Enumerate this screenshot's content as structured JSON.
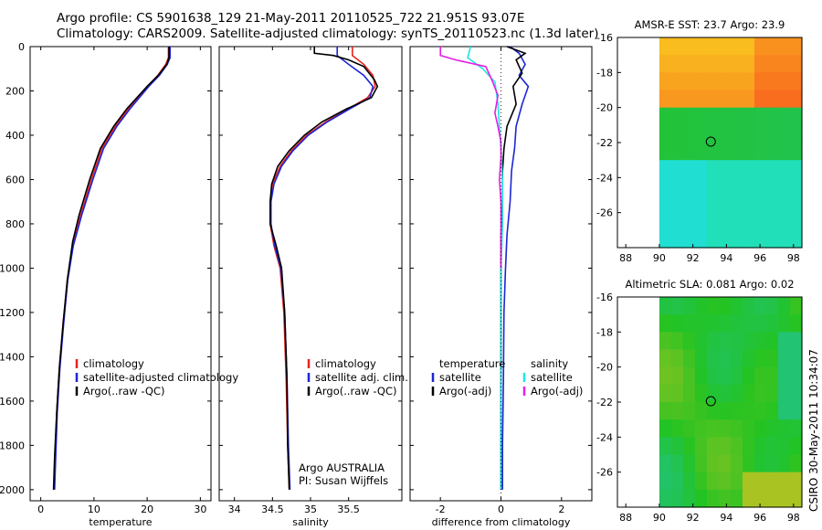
{
  "header": {
    "line1": "Argo profile: CS 5901638_129 21-May-2011 20110525_722 21.951S 93.07E",
    "line2": "Climatology: CARS2009. Satellite-adjusted climatology: synTS_20110523.nc (1.3d later)"
  },
  "footer_stamp": "CSIRO 30-May-2011 10:34:07",
  "colors": {
    "climatology": "#e8231c",
    "satellite": "#1c25d6",
    "argo": "#000000",
    "sat_salinity": "#1ee6e6",
    "argo_salinity": "#e61ee6"
  },
  "chart_data": [
    {
      "type": "line",
      "xlabel": "temperature",
      "xticks": [
        "0",
        "10",
        "20",
        "30"
      ],
      "xlim": [
        -2,
        32
      ],
      "ylim": [
        2050,
        0
      ],
      "yticks": [
        "0",
        "200",
        "400",
        "600",
        "800",
        "1000",
        "1200",
        "1400",
        "1600",
        "1800",
        "2000"
      ],
      "legend": [
        "climatology",
        "satellite-adjusted climatology",
        "Argo(..raw -QC)"
      ],
      "series": [
        {
          "name": "climatology",
          "color": "#e8231c",
          "points": [
            [
              24,
              0
            ],
            [
              24,
              50
            ],
            [
              23.5,
              80
            ],
            [
              22,
              130
            ],
            [
              20,
              180
            ],
            [
              16.5,
              280
            ],
            [
              14,
              360
            ],
            [
              11.5,
              460
            ],
            [
              9.5,
              600
            ],
            [
              7.5,
              760
            ],
            [
              6,
              900
            ],
            [
              5,
              1050
            ],
            [
              4.2,
              1250
            ],
            [
              3.5,
              1450
            ],
            [
              3,
              1650
            ],
            [
              2.7,
              1850
            ],
            [
              2.5,
              2000
            ]
          ]
        },
        {
          "name": "satellite-adjusted climatology",
          "color": "#1c25d6",
          "points": [
            [
              24.3,
              0
            ],
            [
              24.3,
              50
            ],
            [
              23.8,
              80
            ],
            [
              22.3,
              130
            ],
            [
              20.3,
              180
            ],
            [
              16.8,
              280
            ],
            [
              14.3,
              360
            ],
            [
              11.8,
              460
            ],
            [
              9.8,
              600
            ],
            [
              7.7,
              760
            ],
            [
              6.1,
              900
            ],
            [
              5.1,
              1050
            ],
            [
              4.3,
              1250
            ],
            [
              3.6,
              1450
            ],
            [
              3.1,
              1650
            ],
            [
              2.8,
              1850
            ],
            [
              2.6,
              2000
            ]
          ]
        },
        {
          "name": "Argo(..raw -QC)",
          "color": "#000000",
          "points": [
            [
              24.1,
              0
            ],
            [
              24.1,
              50
            ],
            [
              23.7,
              80
            ],
            [
              22.1,
              130
            ],
            [
              20,
              180
            ],
            [
              16.2,
              280
            ],
            [
              13.7,
              360
            ],
            [
              11.2,
              460
            ],
            [
              9.2,
              600
            ],
            [
              7.2,
              760
            ],
            [
              6,
              880
            ],
            [
              5,
              1050
            ],
            [
              4.2,
              1250
            ],
            [
              3.5,
              1450
            ],
            [
              3,
              1650
            ],
            [
              2.6,
              1850
            ],
            [
              2.4,
              2000
            ]
          ]
        }
      ]
    },
    {
      "type": "line",
      "xlabel": "salinity",
      "xticks": [
        "34",
        "34.5",
        "35",
        "35.5"
      ],
      "xlim": [
        33.8,
        36.2
      ],
      "ylim": [
        2050,
        0
      ],
      "legend": [
        "climatology",
        "satellite adj. clim.",
        "Argo(..raw -QC)"
      ],
      "annotation": [
        "Argo AUSTRALIA",
        "PI: Susan Wijffels"
      ],
      "series": [
        {
          "name": "climatology",
          "color": "#e8231c",
          "points": [
            [
              35.55,
              0
            ],
            [
              35.55,
              40
            ],
            [
              35.7,
              80
            ],
            [
              35.82,
              130
            ],
            [
              35.85,
              180
            ],
            [
              35.75,
              230
            ],
            [
              35.5,
              280
            ],
            [
              35.2,
              340
            ],
            [
              34.95,
              400
            ],
            [
              34.75,
              470
            ],
            [
              34.6,
              540
            ],
            [
              34.5,
              620
            ],
            [
              34.47,
              700
            ],
            [
              34.47,
              800
            ],
            [
              34.52,
              900
            ],
            [
              34.6,
              1000
            ],
            [
              34.65,
              1200
            ],
            [
              34.68,
              1500
            ],
            [
              34.7,
              1800
            ],
            [
              34.72,
              2000
            ]
          ]
        },
        {
          "name": "satellite adj. clim.",
          "color": "#1c25d6",
          "points": [
            [
              35.35,
              0
            ],
            [
              35.35,
              40
            ],
            [
              35.5,
              80
            ],
            [
              35.7,
              130
            ],
            [
              35.82,
              180
            ],
            [
              35.78,
              230
            ],
            [
              35.52,
              280
            ],
            [
              35.22,
              340
            ],
            [
              34.97,
              400
            ],
            [
              34.77,
              470
            ],
            [
              34.62,
              540
            ],
            [
              34.52,
              620
            ],
            [
              34.48,
              700
            ],
            [
              34.48,
              800
            ],
            [
              34.53,
              900
            ],
            [
              34.61,
              1000
            ],
            [
              34.66,
              1200
            ],
            [
              34.69,
              1500
            ],
            [
              34.71,
              1800
            ],
            [
              34.73,
              2000
            ]
          ]
        },
        {
          "name": "Argo(..raw -QC)",
          "color": "#000000",
          "points": [
            [
              35.05,
              0
            ],
            [
              35.05,
              30
            ],
            [
              35.3,
              40
            ],
            [
              35.5,
              60
            ],
            [
              35.7,
              90
            ],
            [
              35.84,
              150
            ],
            [
              35.88,
              180
            ],
            [
              35.8,
              230
            ],
            [
              35.48,
              280
            ],
            [
              35.15,
              340
            ],
            [
              34.92,
              400
            ],
            [
              34.72,
              470
            ],
            [
              34.57,
              540
            ],
            [
              34.49,
              620
            ],
            [
              34.47,
              700
            ],
            [
              34.47,
              800
            ],
            [
              34.55,
              900
            ],
            [
              34.62,
              1000
            ],
            [
              34.66,
              1200
            ],
            [
              34.69,
              1500
            ],
            [
              34.7,
              1800
            ],
            [
              34.72,
              2000
            ]
          ]
        }
      ]
    },
    {
      "type": "line",
      "xlabel": "difference from climatology",
      "xticks": [
        "-2",
        "0",
        "2"
      ],
      "xlim": [
        -3,
        3
      ],
      "ylim": [
        2050,
        0
      ],
      "legend_left": [
        "temperature",
        "satellite",
        "Argo(-adj)"
      ],
      "legend_right": [
        "salinity",
        "satellite",
        "Argo(-adj)"
      ],
      "series": [
        {
          "name": "satellite",
          "color": "#1c25d6",
          "points": [
            [
              0.3,
              0
            ],
            [
              0.6,
              30
            ],
            [
              0.8,
              80
            ],
            [
              0.6,
              130
            ],
            [
              0.9,
              180
            ],
            [
              0.7,
              260
            ],
            [
              0.5,
              360
            ],
            [
              0.45,
              460
            ],
            [
              0.35,
              560
            ],
            [
              0.3,
              700
            ],
            [
              0.2,
              850
            ],
            [
              0.15,
              1000
            ],
            [
              0.1,
              1200
            ],
            [
              0.08,
              1500
            ],
            [
              0.05,
              1800
            ],
            [
              0.05,
              2000
            ]
          ]
        },
        {
          "name": "Argo(-adj)",
          "color": "#000000",
          "points": [
            [
              0.2,
              0
            ],
            [
              0.8,
              30
            ],
            [
              0.5,
              60
            ],
            [
              0.7,
              120
            ],
            [
              0.4,
              180
            ],
            [
              0.5,
              260
            ],
            [
              0.2,
              360
            ],
            [
              0.1,
              460
            ],
            [
              0.05,
              560
            ],
            [
              0.05,
              700
            ],
            [
              0.0,
              850
            ],
            [
              0.0,
              1000
            ],
            [
              0.0,
              1200
            ],
            [
              0.0,
              1500
            ],
            [
              0.0,
              1800
            ],
            [
              0.0,
              2000
            ]
          ]
        },
        {
          "name": "satellite (salinity)",
          "color": "#1ee6e6",
          "points": [
            [
              -1.0,
              0
            ],
            [
              -1.1,
              50
            ],
            [
              -0.6,
              100
            ],
            [
              -0.2,
              160
            ],
            [
              -0.1,
              260
            ],
            [
              -0.05,
              360
            ],
            [
              0.0,
              460
            ],
            [
              0.05,
              600
            ],
            [
              0.05,
              800
            ],
            [
              0.0,
              1000
            ],
            [
              0.0,
              1300
            ],
            [
              0.0,
              1600
            ],
            [
              0.0,
              2000
            ]
          ]
        },
        {
          "name": "Argo(-adj) (salinity)",
          "color": "#e61ee6",
          "points": [
            [
              -2.0,
              0
            ],
            [
              -2.0,
              40
            ],
            [
              -1.5,
              60
            ],
            [
              -0.5,
              90
            ],
            [
              -0.3,
              150
            ],
            [
              -0.1,
              220
            ],
            [
              -0.2,
              300
            ],
            [
              -0.1,
              360
            ],
            [
              0.0,
              430
            ],
            [
              0.0,
              500
            ],
            [
              -0.05,
              600
            ],
            [
              0.0,
              700
            ],
            [
              0.0,
              800
            ],
            [
              0.0,
              900
            ],
            [
              0.0,
              1000
            ]
          ]
        }
      ]
    },
    {
      "type": "heatmap",
      "title": "AMSR-E SST: 23.7 Argo: 23.9",
      "xticks": [
        "88",
        "90",
        "92",
        "94",
        "96",
        "98"
      ],
      "yticks": [
        "-16",
        "-18",
        "-20",
        "-22",
        "-24",
        "-26"
      ],
      "xlim": [
        87.5,
        98.5
      ],
      "ylim": [
        -28,
        -16
      ],
      "marker": [
        93.07,
        -21.95
      ]
    },
    {
      "type": "heatmap",
      "title": "Altimetric SLA: 0.081 Argo: 0.02",
      "xticks": [
        "88",
        "90",
        "92",
        "94",
        "96",
        "98"
      ],
      "yticks": [
        "-16",
        "-18",
        "-20",
        "-22",
        "-24",
        "-26"
      ],
      "xlim": [
        87.5,
        98.5
      ],
      "ylim": [
        -28,
        -16
      ],
      "marker": [
        93.07,
        -21.95
      ]
    }
  ]
}
